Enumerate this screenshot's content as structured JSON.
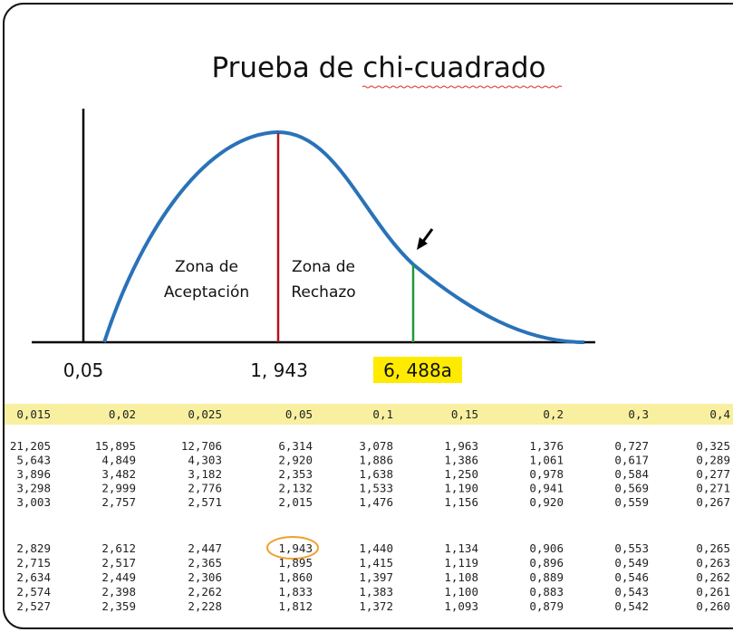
{
  "title": "Prueba de chi-cuadrado",
  "zones": [
    {
      "lines": [
        "Zona de",
        "Aceptación"
      ]
    },
    {
      "lines": [
        "Zona de",
        "Rechazo"
      ]
    }
  ],
  "axis_labels": [
    "0,05",
    "1, 943",
    "6, 488a"
  ],
  "table": {
    "header": [
      "0,015",
      "0,02",
      "0,025",
      "0,05",
      "0,1",
      "0,15",
      "0,2",
      "0,3",
      "0,4"
    ],
    "groups": [
      [
        [
          "21,205",
          "15,895",
          "12,706",
          "6,314",
          "3,078",
          "1,963",
          "1,376",
          "0,727",
          "0,325"
        ],
        [
          "5,643",
          "4,849",
          "4,303",
          "2,920",
          "1,886",
          "1,386",
          "1,061",
          "0,617",
          "0,289"
        ],
        [
          "3,896",
          "3,482",
          "3,182",
          "2,353",
          "1,638",
          "1,250",
          "0,978",
          "0,584",
          "0,277"
        ],
        [
          "3,298",
          "2,999",
          "2,776",
          "2,132",
          "1,533",
          "1,190",
          "0,941",
          "0,569",
          "0,271"
        ],
        [
          "3,003",
          "2,757",
          "2,571",
          "2,015",
          "1,476",
          "1,156",
          "0,920",
          "0,559",
          "0,267"
        ]
      ],
      [
        [
          "2,829",
          "2,612",
          "2,447",
          "1,943",
          "1,440",
          "1,134",
          "0,906",
          "0,553",
          "0,265"
        ],
        [
          "2,715",
          "2,517",
          "2,365",
          "1,895",
          "1,415",
          "1,119",
          "0,896",
          "0,549",
          "0,263"
        ],
        [
          "2,634",
          "2,449",
          "2,306",
          "1,860",
          "1,397",
          "1,108",
          "0,889",
          "0,546",
          "0,262"
        ],
        [
          "2,574",
          "2,398",
          "2,262",
          "1,833",
          "1,383",
          "1,100",
          "0,883",
          "0,543",
          "0,261"
        ],
        [
          "2,527",
          "2,359",
          "2,228",
          "1,812",
          "1,372",
          "1,093",
          "0,879",
          "0,542",
          "0,260"
        ]
      ]
    ]
  }
}
